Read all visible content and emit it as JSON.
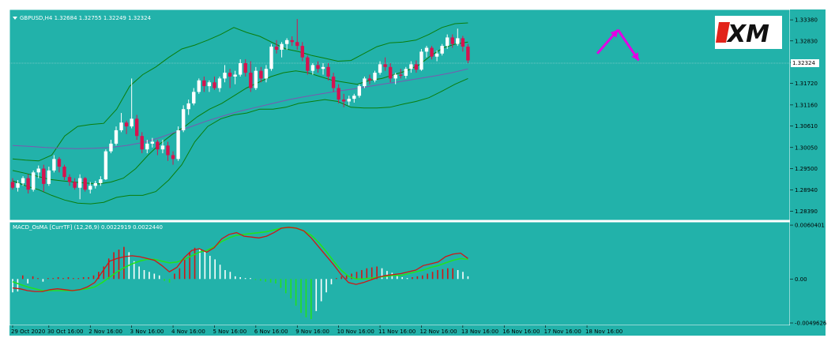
{
  "chart_data": [
    {
      "type": "candlestick",
      "title": "GBPUSD,H4  1.32684 1.32755 1.32249 1.32324",
      "symbol": "GBPUSD",
      "timeframe": "H4",
      "ohlc_last": {
        "open": 1.32684,
        "high": 1.32755,
        "low": 1.32249,
        "close": 1.32324
      },
      "current_price_label": "1.32324",
      "logo_text": "XM",
      "ylim": [
        1.2815,
        1.3365
      ],
      "yticks": [
        1.3338,
        1.3283,
        1.3227,
        1.3172,
        1.3116,
        1.3061,
        1.3005,
        1.295,
        1.2894,
        1.2839
      ],
      "ytick_labels": [
        "1.33380",
        "1.32830",
        "",
        "1.31720",
        "1.31160",
        "1.30610",
        "1.30050",
        "1.29500",
        "1.28940",
        "1.28390"
      ],
      "xtick_labels": [
        "29 Oct 2020",
        "30 Oct 16:00",
        "2 Nov 16:00",
        "3 Nov 16:00",
        "4 Nov 16:00",
        "5 Nov 16:00",
        "6 Nov 16:00",
        "9 Nov 16:00",
        "10 Nov 16:00",
        "11 Nov 16:00",
        "12 Nov 16:00",
        "13 Nov 16:00",
        "16 Nov 16:00",
        "17 Nov 16:00",
        "18 Nov 16:00"
      ],
      "xtick_bar_index": [
        0,
        7,
        15,
        23,
        31,
        39,
        47,
        55,
        63,
        71,
        79,
        87,
        95,
        103,
        111
      ],
      "candles": [
        [
          1.2915,
          1.2925,
          1.2895,
          1.29
        ],
        [
          1.29,
          1.292,
          1.289,
          1.2912
        ],
        [
          1.2912,
          1.293,
          1.2905,
          1.2925
        ],
        [
          1.2925,
          1.2935,
          1.2885,
          1.2895
        ],
        [
          1.2895,
          1.2945,
          1.289,
          1.294
        ],
        [
          1.294,
          1.2958,
          1.2925,
          1.295
        ],
        [
          1.295,
          1.296,
          1.289,
          1.291
        ],
        [
          1.291,
          1.2955,
          1.2905,
          1.2945
        ],
        [
          1.2945,
          1.2985,
          1.294,
          1.2975
        ],
        [
          1.2975,
          1.298,
          1.294,
          1.2955
        ],
        [
          1.2955,
          1.296,
          1.292,
          1.2928
        ],
        [
          1.2928,
          1.2935,
          1.2905,
          1.2915
        ],
        [
          1.2915,
          1.2925,
          1.2895,
          1.29
        ],
        [
          1.29,
          1.2935,
          1.287,
          1.2925
        ],
        [
          1.2925,
          1.2928,
          1.289,
          1.2895
        ],
        [
          1.2895,
          1.2915,
          1.2885,
          1.2905
        ],
        [
          1.2905,
          1.2918,
          1.2898,
          1.2912
        ],
        [
          1.2912,
          1.293,
          1.2905,
          1.2922
        ],
        [
          1.2922,
          1.3,
          1.292,
          1.2995
        ],
        [
          1.2995,
          1.3025,
          1.299,
          1.3015
        ],
        [
          1.3015,
          1.306,
          1.301,
          1.305
        ],
        [
          1.305,
          1.3095,
          1.3045,
          1.307
        ],
        [
          1.307,
          1.3075,
          1.304,
          1.306
        ],
        [
          1.306,
          1.3185,
          1.3055,
          1.308
        ],
        [
          1.308,
          1.309,
          1.3025,
          1.3035
        ],
        [
          1.3035,
          1.3045,
          1.299,
          1.3
        ],
        [
          1.3,
          1.3025,
          1.299,
          1.3015
        ],
        [
          1.3015,
          1.303,
          1.3005,
          1.302
        ],
        [
          1.302,
          1.3025,
          1.2985,
          1.3
        ],
        [
          1.3,
          1.3025,
          1.299,
          1.301
        ],
        [
          1.301,
          1.302,
          1.297,
          1.2985
        ],
        [
          1.2985,
          1.2995,
          1.296,
          1.2975
        ],
        [
          1.2975,
          1.306,
          1.297,
          1.305
        ],
        [
          1.305,
          1.3115,
          1.3045,
          1.3105
        ],
        [
          1.3105,
          1.313,
          1.309,
          1.312
        ],
        [
          1.312,
          1.316,
          1.3115,
          1.315
        ],
        [
          1.315,
          1.3185,
          1.3145,
          1.318
        ],
        [
          1.318,
          1.319,
          1.315,
          1.3165
        ],
        [
          1.3165,
          1.318,
          1.315,
          1.3175
        ],
        [
          1.3175,
          1.319,
          1.3155,
          1.316
        ],
        [
          1.316,
          1.319,
          1.315,
          1.3185
        ],
        [
          1.3185,
          1.322,
          1.3175,
          1.32
        ],
        [
          1.32,
          1.321,
          1.316,
          1.319
        ],
        [
          1.319,
          1.3205,
          1.317,
          1.3195
        ],
        [
          1.3195,
          1.3235,
          1.319,
          1.3225
        ],
        [
          1.3225,
          1.3235,
          1.319,
          1.32
        ],
        [
          1.32,
          1.323,
          1.315,
          1.316
        ],
        [
          1.316,
          1.3215,
          1.3155,
          1.3205
        ],
        [
          1.3205,
          1.3215,
          1.3175,
          1.3185
        ],
        [
          1.3185,
          1.322,
          1.3175,
          1.321
        ],
        [
          1.321,
          1.3275,
          1.3205,
          1.3268
        ],
        [
          1.3268,
          1.3285,
          1.325,
          1.326
        ],
        [
          1.326,
          1.328,
          1.324,
          1.3275
        ],
        [
          1.3275,
          1.329,
          1.326,
          1.3285
        ],
        [
          1.3285,
          1.3295,
          1.327,
          1.328
        ],
        [
          1.328,
          1.334,
          1.326,
          1.327
        ],
        [
          1.327,
          1.328,
          1.323,
          1.324
        ],
        [
          1.324,
          1.3245,
          1.3195,
          1.3205
        ],
        [
          1.3205,
          1.3225,
          1.3195,
          1.322
        ],
        [
          1.322,
          1.323,
          1.32,
          1.321
        ],
        [
          1.321,
          1.3225,
          1.3195,
          1.3215
        ],
        [
          1.3215,
          1.3225,
          1.318,
          1.319
        ],
        [
          1.319,
          1.32,
          1.315,
          1.316
        ],
        [
          1.316,
          1.317,
          1.312,
          1.313
        ],
        [
          1.313,
          1.3145,
          1.311,
          1.3125
        ],
        [
          1.3125,
          1.314,
          1.3115,
          1.3132
        ],
        [
          1.3132,
          1.3145,
          1.3122,
          1.314
        ],
        [
          1.314,
          1.317,
          1.3135,
          1.3165
        ],
        [
          1.3165,
          1.319,
          1.316,
          1.3185
        ],
        [
          1.3185,
          1.3195,
          1.317,
          1.318
        ],
        [
          1.318,
          1.3205,
          1.3175,
          1.32
        ],
        [
          1.32,
          1.323,
          1.3195,
          1.3222
        ],
        [
          1.3222,
          1.324,
          1.3205,
          1.3215
        ],
        [
          1.3215,
          1.3225,
          1.3175,
          1.3185
        ],
        [
          1.3185,
          1.32,
          1.317,
          1.3195
        ],
        [
          1.3195,
          1.321,
          1.3185,
          1.3192
        ],
        [
          1.3192,
          1.3215,
          1.3185,
          1.321
        ],
        [
          1.321,
          1.323,
          1.32,
          1.3222
        ],
        [
          1.3222,
          1.3232,
          1.32,
          1.3208
        ],
        [
          1.3208,
          1.3262,
          1.3205,
          1.3255
        ],
        [
          1.3255,
          1.327,
          1.324,
          1.3265
        ],
        [
          1.3265,
          1.327,
          1.3235,
          1.3242
        ],
        [
          1.3242,
          1.3258,
          1.323,
          1.325
        ],
        [
          1.325,
          1.3275,
          1.3245,
          1.327
        ],
        [
          1.327,
          1.33,
          1.3262,
          1.3292
        ],
        [
          1.3292,
          1.33,
          1.3265,
          1.3275
        ],
        [
          1.3275,
          1.3315,
          1.327,
          1.329
        ],
        [
          1.329,
          1.3296,
          1.3255,
          1.3268
        ],
        [
          1.3268,
          1.3275,
          1.3225,
          1.3232
        ]
      ],
      "bollinger": {
        "middle": [
          1.2945,
          1.2938,
          1.293,
          1.2922,
          1.2918,
          1.2915,
          1.2912,
          1.291,
          1.2915,
          1.2925,
          1.295,
          1.2985,
          1.3015,
          1.304,
          1.306,
          1.3085,
          1.3105,
          1.312,
          1.314,
          1.316,
          1.3175,
          1.319,
          1.32,
          1.3205,
          1.32,
          1.319,
          1.318,
          1.3175,
          1.317,
          1.318,
          1.3185,
          1.3195,
          1.3205,
          1.322,
          1.3245,
          1.3265,
          1.3275,
          1.328
        ],
        "upper": [
          1.2975,
          1.2972,
          1.297,
          1.2985,
          1.3035,
          1.306,
          1.3065,
          1.3068,
          1.3105,
          1.3165,
          1.3195,
          1.3215,
          1.324,
          1.3262,
          1.3272,
          1.3285,
          1.33,
          1.3318,
          1.3305,
          1.3295,
          1.3278,
          1.3262,
          1.3255,
          1.3245,
          1.3238,
          1.323,
          1.3232,
          1.325,
          1.3268,
          1.3278,
          1.328,
          1.3285,
          1.33,
          1.3318,
          1.3328,
          1.333
        ],
        "lower": [
          1.2918,
          1.2905,
          1.2895,
          1.288,
          1.2868,
          1.286,
          1.2858,
          1.2862,
          1.2875,
          1.288,
          1.288,
          1.289,
          1.292,
          1.296,
          1.302,
          1.306,
          1.308,
          1.309,
          1.3095,
          1.3105,
          1.3105,
          1.311,
          1.312,
          1.3125,
          1.313,
          1.3125,
          1.311,
          1.3108,
          1.3108,
          1.311,
          1.3118,
          1.3125,
          1.3135,
          1.3152,
          1.317,
          1.3185
        ]
      },
      "moving_average": [
        1.301,
        1.3008,
        1.3005,
        1.3003,
        1.3002,
        1.3003,
        1.3005,
        1.301,
        1.3018,
        1.303,
        1.3045,
        1.306,
        1.3075,
        1.3088,
        1.31,
        1.311,
        1.312,
        1.313,
        1.3138,
        1.3145,
        1.3152,
        1.3158,
        1.3165,
        1.3172,
        1.3178,
        1.3185,
        1.3192,
        1.32,
        1.321
      ],
      "annotation_arrows": [
        {
          "from_bar": 113,
          "from_price": 1.325,
          "to_bar": 117,
          "to_price": 1.3312,
          "color": "#e400e4"
        },
        {
          "from_bar": 117,
          "from_price": 1.3312,
          "to_bar": 121,
          "to_price": 1.3232,
          "color": "#e400e4"
        }
      ],
      "colors": {
        "background": "#22b2aa",
        "bull": "#ffffff",
        "bear": "#d6134f",
        "bands": "#0b7d0b",
        "ma": "#7b58b0",
        "macd_line": "#d11515",
        "signal_line": "#22e022",
        "histogram_white": "#ffffff",
        "histogram_red": "#d11515",
        "histogram_green": "#22e022",
        "frame": "#ffffff",
        "annotation": "#e400e4"
      }
    },
    {
      "type": "macd",
      "title": "MACD_OsMA [CurrTF] (12,26,9) 0.0022919 0.0022440",
      "name": "MACD_OsMA [CurrTF]",
      "params": [
        12,
        26,
        9
      ],
      "last_macd": 0.0022919,
      "last_signal": 0.002244,
      "ylim": [
        -0.0052,
        0.0064
      ],
      "ytick_values": [
        0.0060401,
        0.0,
        -0.0049626
      ],
      "ytick_labels": [
        "0.0060401",
        "0.00",
        "-0.0049626"
      ],
      "macd": [
        -0.001,
        -0.0011,
        -0.0013,
        -0.0014,
        -0.0014,
        -0.0012,
        -0.0011,
        -0.0012,
        -0.0013,
        -0.0012,
        -0.0009,
        -0.0004,
        0.0008,
        0.002,
        0.0023,
        0.0025,
        0.0026,
        0.0025,
        0.0023,
        0.0021,
        0.0015,
        0.0008,
        0.0013,
        0.0024,
        0.0032,
        0.0034,
        0.003,
        0.0035,
        0.0045,
        0.005,
        0.0052,
        0.0048,
        0.0047,
        0.0046,
        0.0048,
        0.0052,
        0.0057,
        0.0058,
        0.0057,
        0.0054,
        0.0046,
        0.0036,
        0.0026,
        0.0016,
        0.0005,
        -0.0004,
        -0.0006,
        -0.0004,
        -0.0001,
        0.0002,
        0.0004,
        0.0005,
        0.0006,
        0.0008,
        0.001,
        0.0015,
        0.0017,
        0.0019,
        0.0025,
        0.0028,
        0.0029,
        0.0023
      ],
      "signal": [
        -0.0003,
        -0.0006,
        -0.0009,
        -0.0011,
        -0.0013,
        -0.0013,
        -0.0013,
        -0.0013,
        -0.0013,
        -0.0012,
        -0.0011,
        -0.0009,
        -0.0004,
        0.0002,
        0.0008,
        0.0013,
        0.0017,
        0.002,
        0.0022,
        0.0022,
        0.002,
        0.0018,
        0.0019,
        0.0022,
        0.0026,
        0.003,
        0.0032,
        0.0036,
        0.0042,
        0.0046,
        0.0049,
        0.005,
        0.0051,
        0.0052,
        0.0053,
        0.0055,
        0.0057,
        0.0058,
        0.0057,
        0.0054,
        0.0049,
        0.0041,
        0.0031,
        0.002,
        0.001,
        0.0003,
        0.0,
        0.0,
        0.0001,
        0.0002,
        0.0003,
        0.0004,
        0.0004,
        0.0006,
        0.0008,
        0.001,
        0.0013,
        0.0015,
        0.0018,
        0.0021,
        0.0023,
        0.0022
      ],
      "histogram": [
        -0.0015,
        -0.0014,
        0.0004,
        -0.0005,
        0.0003,
        0.0001,
        -0.0003,
        0.0001,
        0.0001,
        0.0002,
        0.0001,
        0.0002,
        0.0001,
        0.0001,
        0.0002,
        0.0002,
        0.0004,
        0.0008,
        0.0014,
        0.0023,
        0.003,
        0.0033,
        0.0036,
        0.003,
        0.002,
        0.0014,
        0.001,
        0.0008,
        0.0006,
        0.0004,
        -0.0002,
        -0.0004,
        0.0006,
        0.0012,
        0.0022,
        0.003,
        0.0035,
        0.0034,
        0.0031,
        0.0026,
        0.0022,
        0.0016,
        0.001,
        0.0008,
        0.0003,
        0.0002,
        0.0001,
        0.0001,
        -0.0001,
        -0.0002,
        -0.0003,
        -0.0004,
        -0.0005,
        -0.001,
        -0.0016,
        -0.0022,
        -0.003,
        -0.0038,
        -0.0043,
        -0.0045,
        -0.0036,
        -0.0025,
        -0.0015,
        -0.0006,
        0.0001,
        0.0003,
        0.0004,
        0.0006,
        0.0008,
        0.001,
        0.0012,
        0.0013,
        0.0014,
        0.0012,
        0.0009,
        0.0007,
        0.0004,
        0.0002,
        0.0001,
        0.0002,
        0.0003,
        0.0004,
        0.0006,
        0.0008,
        0.001,
        0.0011,
        0.0012,
        0.0012,
        0.001,
        0.0008,
        0.0003
      ],
      "hist_colors": [
        "w",
        "w",
        "r",
        "w",
        "r",
        "r",
        "w",
        "r",
        "r",
        "r",
        "r",
        "r",
        "r",
        "r",
        "r",
        "r",
        "r",
        "r",
        "r",
        "r",
        "r",
        "r",
        "r",
        "w",
        "w",
        "w",
        "w",
        "w",
        "w",
        "w",
        "g",
        "g",
        "r",
        "r",
        "r",
        "r",
        "r",
        "w",
        "w",
        "w",
        "w",
        "w",
        "w",
        "w",
        "w",
        "w",
        "w",
        "w",
        "g",
        "g",
        "g",
        "g",
        "g",
        "g",
        "g",
        "g",
        "g",
        "g",
        "g",
        "g",
        "w",
        "w",
        "w",
        "w",
        "r",
        "r",
        "r",
        "r",
        "r",
        "r",
        "r",
        "r",
        "r",
        "w",
        "w",
        "w",
        "w",
        "w",
        "w",
        "r",
        "r",
        "r",
        "r",
        "r",
        "r",
        "r",
        "r",
        "r",
        "w",
        "w",
        "w"
      ]
    }
  ]
}
